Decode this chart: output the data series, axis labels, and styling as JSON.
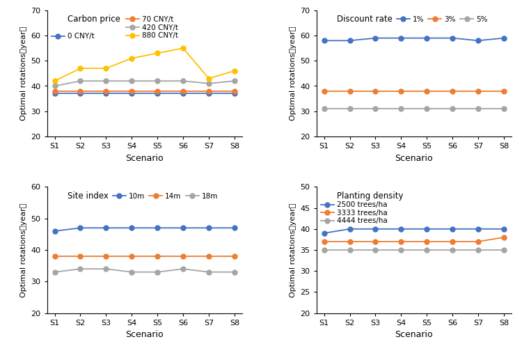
{
  "scenarios": [
    "S1",
    "S2",
    "S3",
    "S4",
    "S5",
    "S6",
    "S7",
    "S8"
  ],
  "panel1": {
    "title": "Carbon price",
    "series": [
      {
        "label": "0 CNY/t",
        "color": "#4472C4",
        "values": [
          37,
          37,
          37,
          37,
          37,
          37,
          37,
          37
        ]
      },
      {
        "label": "70 CNY/t",
        "color": "#ED7D31",
        "values": [
          38,
          38,
          38,
          38,
          38,
          38,
          38,
          38
        ]
      },
      {
        "label": "420 CNY/t",
        "color": "#A5A5A5",
        "values": [
          40,
          42,
          42,
          42,
          42,
          42,
          41,
          42
        ]
      },
      {
        "label": "880 CNY/t",
        "color": "#FFC000",
        "values": [
          42,
          47,
          47,
          51,
          53,
          55,
          43,
          46
        ]
      }
    ],
    "ylim": [
      20,
      70
    ],
    "yticks": [
      20,
      30,
      40,
      50,
      60,
      70
    ],
    "legend_ncol": 2
  },
  "panel2": {
    "title": "Discount rate",
    "series": [
      {
        "label": "1%",
        "color": "#4472C4",
        "values": [
          58,
          58,
          59,
          59,
          59,
          59,
          58,
          59
        ]
      },
      {
        "label": "3%",
        "color": "#ED7D31",
        "values": [
          38,
          38,
          38,
          38,
          38,
          38,
          38,
          38
        ]
      },
      {
        "label": "5%",
        "color": "#A5A5A5",
        "values": [
          31,
          31,
          31,
          31,
          31,
          31,
          31,
          31
        ]
      }
    ],
    "ylim": [
      20,
      70
    ],
    "yticks": [
      20,
      30,
      40,
      50,
      60,
      70
    ],
    "legend_ncol": 3
  },
  "panel3": {
    "title": "Site index",
    "series": [
      {
        "label": "10m",
        "color": "#4472C4",
        "values": [
          46,
          47,
          47,
          47,
          47,
          47,
          47,
          47
        ]
      },
      {
        "label": "14m",
        "color": "#ED7D31",
        "values": [
          38,
          38,
          38,
          38,
          38,
          38,
          38,
          38
        ]
      },
      {
        "label": "18m",
        "color": "#A5A5A5",
        "values": [
          33,
          34,
          34,
          33,
          33,
          34,
          33,
          33
        ]
      }
    ],
    "ylim": [
      20,
      60
    ],
    "yticks": [
      20,
      30,
      40,
      50,
      60
    ],
    "legend_ncol": 3
  },
  "panel4": {
    "title": "Planting density",
    "series": [
      {
        "label": "2500 trees/ha",
        "color": "#4472C4",
        "values": [
          39,
          40,
          40,
          40,
          40,
          40,
          40,
          40
        ]
      },
      {
        "label": "3333 trees/ha",
        "color": "#ED7D31",
        "values": [
          37,
          37,
          37,
          37,
          37,
          37,
          37,
          38
        ]
      },
      {
        "label": "4444 trees/ha",
        "color": "#A5A5A5",
        "values": [
          35,
          35,
          35,
          35,
          35,
          35,
          35,
          35
        ]
      }
    ],
    "ylim": [
      20,
      50
    ],
    "yticks": [
      20,
      25,
      30,
      35,
      40,
      45,
      50
    ],
    "legend_ncol": 1
  },
  "xlabel": "Scenario",
  "ylabel": "Optimal rotations（year）",
  "marker": "o",
  "markersize": 5,
  "linewidth": 1.3
}
